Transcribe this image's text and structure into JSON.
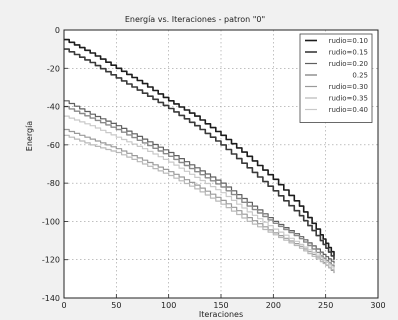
{
  "chart_data": {
    "type": "line",
    "title": "Energía vs. Iteraciones - patron \"0\"",
    "xlabel": "Iteraciones",
    "ylabel": "Energía",
    "xlim": [
      0,
      300
    ],
    "ylim": [
      -140,
      0
    ],
    "xticks": [
      0,
      50,
      100,
      150,
      200,
      250,
      300
    ],
    "yticks": [
      0,
      -20,
      -40,
      -60,
      -80,
      -100,
      -120,
      -140
    ],
    "grid": true,
    "legend_position": "top-right",
    "series": [
      {
        "name": "rudio=0.10",
        "color": "#1c1c1c",
        "width": 1.6,
        "x": [
          0,
          25,
          50,
          75,
          100,
          125,
          150,
          175,
          200,
          225,
          245,
          258
        ],
        "y": [
          -5,
          -12,
          -20,
          -28,
          -37,
          -45,
          -55,
          -66,
          -78,
          -92,
          -107,
          -118
        ]
      },
      {
        "name": "rudio=0.15",
        "color": "#3a3a3a",
        "width": 1.6,
        "x": [
          0,
          25,
          50,
          75,
          100,
          125,
          150,
          175,
          200,
          225,
          245,
          258
        ],
        "y": [
          -10,
          -17,
          -25,
          -33,
          -41,
          -50,
          -60,
          -72,
          -84,
          -97,
          -110,
          -120
        ]
      },
      {
        "name": "rudio=0.20",
        "color": "#5f5f5f",
        "width": 1.2,
        "x": [
          0,
          25,
          50,
          75,
          100,
          125,
          150,
          175,
          200,
          225,
          245,
          258
        ],
        "y": [
          -37,
          -44,
          -50,
          -57,
          -64,
          -72,
          -80,
          -90,
          -100,
          -108,
          -116,
          -122
        ]
      },
      {
        "name": "0.25",
        "color": "#8a8a8a",
        "width": 1.4,
        "x": [
          0,
          25,
          50,
          75,
          100,
          125,
          150,
          175,
          200,
          225,
          245,
          258
        ],
        "y": [
          -40,
          -46,
          -52,
          -59,
          -66,
          -74,
          -82,
          -92,
          -101,
          -109,
          -118,
          -124
        ]
      },
      {
        "name": "rudio=0.30",
        "color": "#9a9a9a",
        "width": 1.2,
        "x": [
          0,
          25,
          50,
          75,
          100,
          125,
          150,
          175,
          200,
          225,
          245,
          258
        ],
        "y": [
          -52,
          -57,
          -62,
          -68,
          -74,
          -81,
          -89,
          -98,
          -106,
          -113,
          -120,
          -127
        ]
      },
      {
        "name": "rudio=0.35",
        "color": "#b8b8b8",
        "width": 1.2,
        "x": [
          0,
          25,
          50,
          75,
          100,
          125,
          150,
          175,
          200,
          225,
          245,
          258
        ],
        "y": [
          -55,
          -60,
          -64,
          -70,
          -76,
          -83,
          -91,
          -100,
          -107,
          -114,
          -121,
          -126
        ]
      },
      {
        "name": "rudio=0.40",
        "color": "#c9c9c9",
        "width": 1.2,
        "x": [
          0,
          25,
          50,
          75,
          100,
          125,
          150,
          175,
          200,
          225,
          245,
          258
        ],
        "y": [
          -45,
          -50,
          -56,
          -62,
          -69,
          -77,
          -85,
          -95,
          -104,
          -112,
          -119,
          -125
        ]
      }
    ]
  }
}
